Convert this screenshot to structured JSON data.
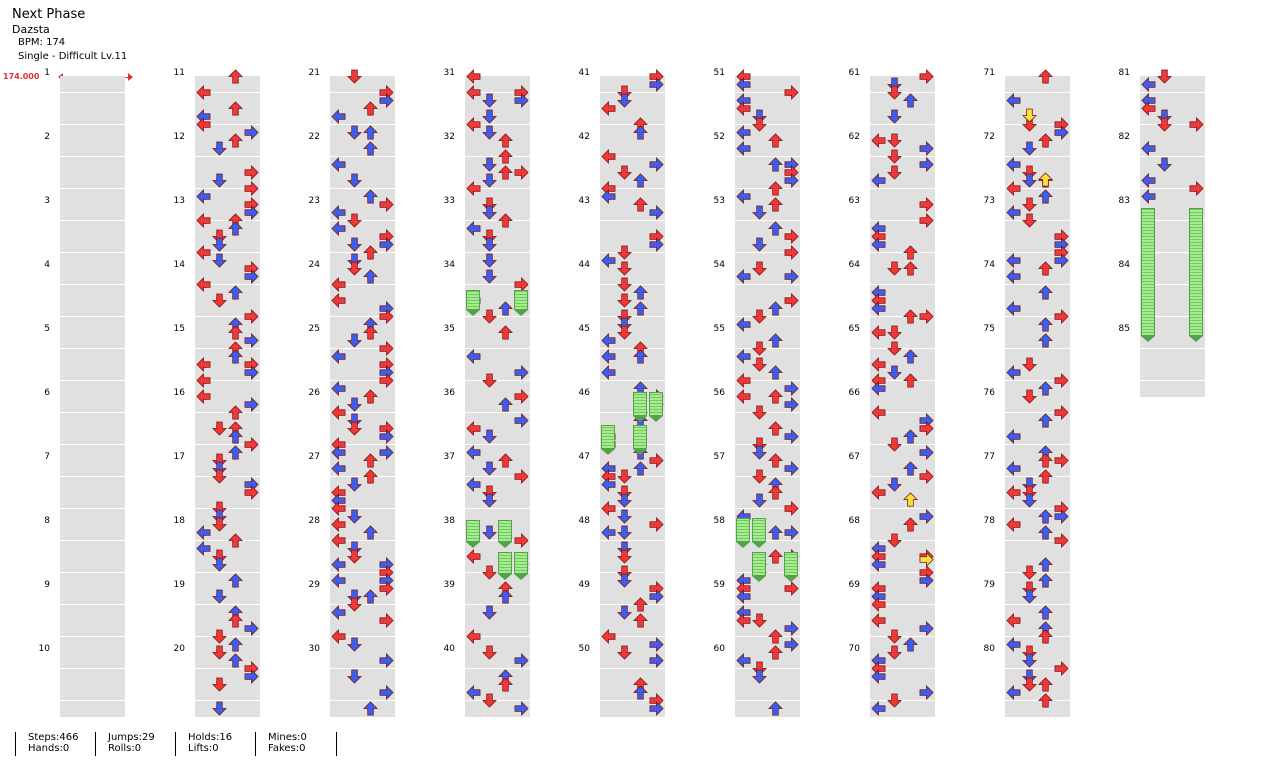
{
  "song": {
    "title": "Next Phase",
    "artist": "Dazsta",
    "bpm_line": "BPM: 174",
    "difficulty_line": "Single - Difficult Lv.11",
    "bpm_marker": "174.000"
  },
  "colors": {
    "quarter_note": "#f03838",
    "eighth_note": "#3a5ff0",
    "hold": "#a6eb8e",
    "mine_or_sixteenth": "#f6e23a",
    "bpm_marker": "#e03030"
  },
  "columns": [
    {
      "measures": [
        "1",
        "2",
        "3",
        "4",
        "5",
        "6",
        "7",
        "8",
        "9",
        "10"
      ]
    },
    {
      "measures": [
        "11",
        "12",
        "13",
        "14",
        "15",
        "16",
        "17",
        "18",
        "19",
        "20"
      ]
    },
    {
      "measures": [
        "21",
        "22",
        "23",
        "24",
        "25",
        "26",
        "27",
        "28",
        "29",
        "30"
      ]
    },
    {
      "measures": [
        "31",
        "32",
        "33",
        "34",
        "35",
        "36",
        "37",
        "38",
        "39",
        "40"
      ]
    },
    {
      "measures": [
        "41",
        "42",
        "43",
        "44",
        "45",
        "46",
        "47",
        "48",
        "49",
        "50"
      ]
    },
    {
      "measures": [
        "51",
        "52",
        "53",
        "54",
        "55",
        "56",
        "57",
        "58",
        "59",
        "60"
      ]
    },
    {
      "measures": [
        "61",
        "62",
        "63",
        "64",
        "65",
        "66",
        "67",
        "68",
        "69",
        "70"
      ]
    },
    {
      "measures": [
        "71",
        "72",
        "73",
        "74",
        "75",
        "76",
        "77",
        "78",
        "79",
        "80"
      ]
    },
    {
      "measures": [
        "81",
        "82",
        "83",
        "84",
        "85"
      ]
    }
  ],
  "stats": {
    "steps": "Steps:466",
    "hands": "Hands:0",
    "jumps": "Jumps:29",
    "rolls": "Rolls:0",
    "holds": "Holds:16",
    "lifts": "Lifts:0",
    "mines": "Mines:0",
    "fakes": "Fakes:0"
  }
}
